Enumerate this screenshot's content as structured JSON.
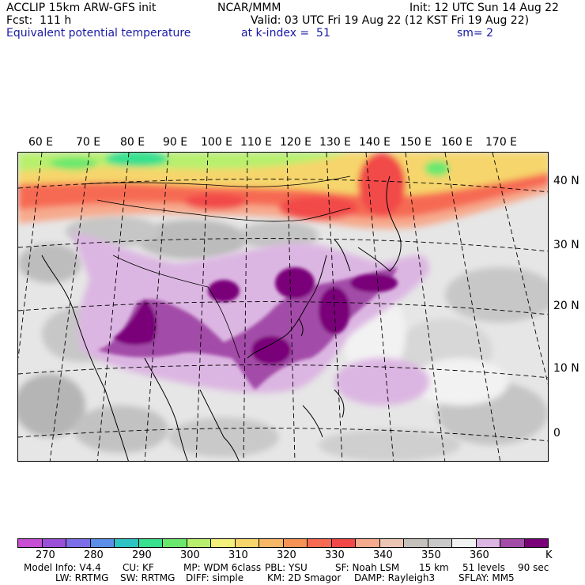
{
  "header": {
    "line1_left": "ACCLIP 15km ARW-GFS init",
    "line1_center": "NCAR/MMM",
    "line1_right": "Init: 12 UTC Sun 14 Aug 22",
    "line2_left": "Fcst:  111 h",
    "line2_right": "Valid: 03 UTC Fri 19 Aug 22 (12 KST Fri 19 Aug 22)",
    "line3_left": "Equivalent potential temperature",
    "line3_center": "at k-index =  51",
    "line3_right": "sm= 2"
  },
  "map": {
    "lon_labels": [
      "60 E",
      "70 E",
      "80 E",
      "90 E",
      "100 E",
      "110 E",
      "120 E",
      "130 E",
      "140 E",
      "150 E",
      "160 E",
      "170 E"
    ],
    "lat_labels": [
      "40 N",
      "30 N",
      "20 N",
      "10 N",
      "0"
    ]
  },
  "colorbar": {
    "colors": [
      "#c64fd4",
      "#9a4fd8",
      "#7b6ee6",
      "#5a8ee8",
      "#2fc4c4",
      "#39e08e",
      "#6ae86e",
      "#b8f06e",
      "#f2f07a",
      "#f6d66c",
      "#f6b866",
      "#f69254",
      "#f66a52",
      "#f24848",
      "#f6aa8e",
      "#ebc6b4",
      "#c6c0bc",
      "#c9c9c9",
      "#f2f2f2",
      "#dcb6e2",
      "#a34ca8",
      "#7a007a"
    ],
    "ticks": [
      "270",
      "280",
      "290",
      "300",
      "310",
      "320",
      "330",
      "340",
      "350",
      "360"
    ],
    "unit": "K"
  },
  "footer": {
    "line1": [
      "Model Info: V4.4",
      "CU: KF",
      "MP: WDM 6class",
      "PBL: YSU",
      "SF: Noah LSM",
      "15 km",
      "51 levels",
      "90 sec"
    ],
    "line2": [
      "LW: RRTMG",
      "SW: RRTMG",
      "DIFF: simple",
      "KM: 2D Smagor",
      "DAMP: Rayleigh3",
      "SFLAY: MM5"
    ]
  }
}
